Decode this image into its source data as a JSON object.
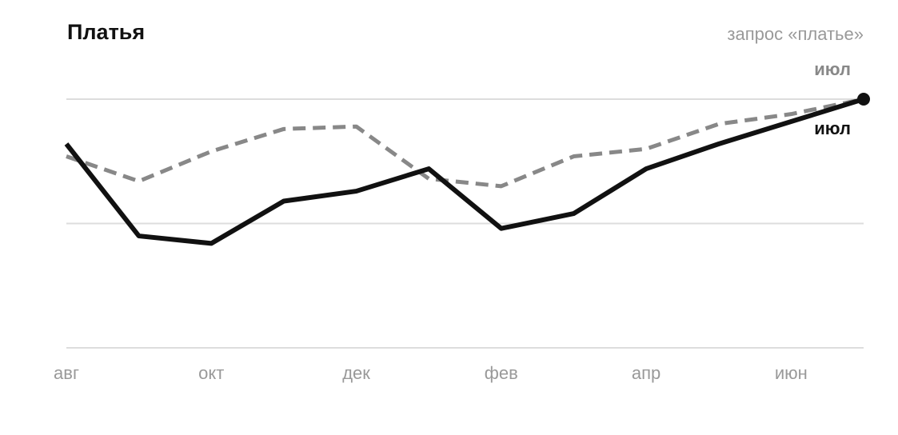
{
  "chart_data": {
    "type": "line",
    "title": "Платья",
    "subtitle": "запрос «платье»",
    "categories": [
      "авг",
      null,
      "окт",
      null,
      "дек",
      null,
      "фев",
      null,
      "апр",
      null,
      "июн",
      null
    ],
    "series": [
      {
        "color": "#888888",
        "dashed": true,
        "end_label": "июл",
        "values": [
          77,
          67,
          79,
          88,
          89,
          68,
          65,
          77,
          80,
          90,
          94,
          100
        ]
      },
      {
        "color": "#111111",
        "dashed": false,
        "end_label": "июл",
        "end_dot": true,
        "values": [
          82,
          45,
          42,
          59,
          63,
          72,
          48,
          54,
          72,
          82,
          91,
          100
        ]
      }
    ],
    "ylim": [
      0,
      100
    ],
    "grid_lines": [
      0,
      50,
      100
    ]
  }
}
